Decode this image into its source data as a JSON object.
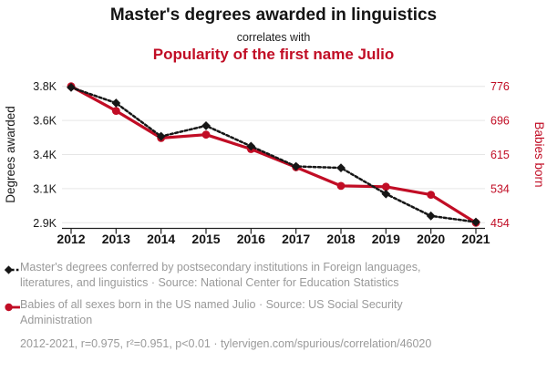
{
  "header": {
    "title": "Master's degrees awarded in linguistics",
    "subtitle": "correlates with",
    "secondary_title": "Popularity of the first name Julio"
  },
  "chart_data": {
    "type": "line",
    "x": [
      2012,
      2013,
      2014,
      2015,
      2016,
      2017,
      2018,
      2019,
      2020,
      2021
    ],
    "series": [
      {
        "name": "Master's degrees awarded in linguistics",
        "axis": "left",
        "color": "#161616",
        "line_style": "dashed",
        "marker": "diamond",
        "values": [
          3793,
          3690,
          3470,
          3540,
          3405,
          3272,
          3262,
          3090,
          2945,
          2905
        ]
      },
      {
        "name": "Popularity of the first name Julio",
        "axis": "right",
        "color": "#c10d25",
        "line_style": "solid",
        "marker": "circle",
        "values": [
          776,
          718,
          654,
          662,
          628,
          585,
          541,
          539,
          520,
          454
        ]
      }
    ],
    "left_axis": {
      "label": "Degrees awarded",
      "tick_labels": [
        "3.8K",
        "3.6K",
        "3.4K",
        "3.1K",
        "2.9K"
      ],
      "max": 3800,
      "min": 2900
    },
    "right_axis": {
      "label": "Babies born",
      "tick_labels": [
        "776",
        "696",
        "615",
        "534",
        "454"
      ],
      "max": 776,
      "min": 454
    },
    "x_axis": {
      "tick_labels": [
        "2012",
        "2013",
        "2014",
        "2015",
        "2016",
        "2017",
        "2018",
        "2019",
        "2020",
        "2021"
      ]
    },
    "grid": "horizontal",
    "legend_position": "bottom"
  },
  "legend": {
    "entries": [
      {
        "label": "Master's degrees conferred by postsecondary institutions in Foreign languages, literatures, and linguistics · Source: National Center for Education Statistics"
      },
      {
        "label": "Babies of all sexes born in the US named Julio · Source: US Social Security Administration"
      }
    ],
    "footnote": "2012-2021, r=0.975, r²=0.951, p<0.01 · tylervigen.com/spurious/correlation/46020"
  },
  "colors": {
    "accent_red": "#c10d25",
    "series_black": "#161616",
    "legend_gray": "#9a9a9a",
    "gridline": "#e6e6e6",
    "axis_line": "#222222"
  }
}
